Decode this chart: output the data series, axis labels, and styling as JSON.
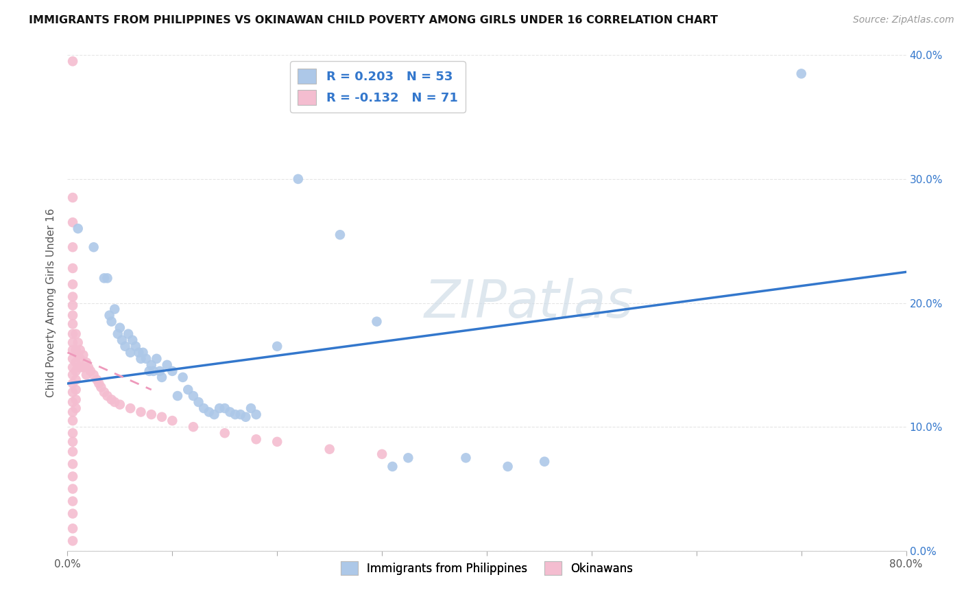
{
  "title": "IMMIGRANTS FROM PHILIPPINES VS OKINAWAN CHILD POVERTY AMONG GIRLS UNDER 16 CORRELATION CHART",
  "source": "Source: ZipAtlas.com",
  "ylabel": "Child Poverty Among Girls Under 16",
  "xlim": [
    0,
    0.8
  ],
  "ylim": [
    0,
    0.4
  ],
  "xticks": [
    0.0,
    0.1,
    0.2,
    0.3,
    0.4,
    0.5,
    0.6,
    0.7,
    0.8
  ],
  "xticklabels": [
    "0.0%",
    "",
    "",
    "",
    "",
    "",
    "",
    "",
    "80.0%"
  ],
  "yticks": [
    0.0,
    0.1,
    0.2,
    0.3,
    0.4
  ],
  "yticklabels_right": [
    "0.0%",
    "10.0%",
    "20.0%",
    "30.0%",
    "40.0%"
  ],
  "r_blue": 0.203,
  "n_blue": 53,
  "r_pink": -0.132,
  "n_pink": 71,
  "watermark": "ZIPatlas",
  "blue_color": "#adc8e8",
  "pink_color": "#f4bdd0",
  "trendline_blue_color": "#3377cc",
  "trendline_pink_color": "#ee99bb",
  "legend_text_color": "#3377cc",
  "blue_scatter": [
    [
      0.01,
      0.26
    ],
    [
      0.025,
      0.245
    ],
    [
      0.035,
      0.22
    ],
    [
      0.038,
      0.22
    ],
    [
      0.04,
      0.19
    ],
    [
      0.042,
      0.185
    ],
    [
      0.045,
      0.195
    ],
    [
      0.048,
      0.175
    ],
    [
      0.05,
      0.18
    ],
    [
      0.052,
      0.17
    ],
    [
      0.055,
      0.165
    ],
    [
      0.058,
      0.175
    ],
    [
      0.06,
      0.16
    ],
    [
      0.062,
      0.17
    ],
    [
      0.065,
      0.165
    ],
    [
      0.068,
      0.16
    ],
    [
      0.07,
      0.155
    ],
    [
      0.072,
      0.16
    ],
    [
      0.075,
      0.155
    ],
    [
      0.078,
      0.145
    ],
    [
      0.08,
      0.15
    ],
    [
      0.082,
      0.145
    ],
    [
      0.085,
      0.155
    ],
    [
      0.088,
      0.145
    ],
    [
      0.09,
      0.14
    ],
    [
      0.095,
      0.15
    ],
    [
      0.1,
      0.145
    ],
    [
      0.105,
      0.125
    ],
    [
      0.11,
      0.14
    ],
    [
      0.115,
      0.13
    ],
    [
      0.12,
      0.125
    ],
    [
      0.125,
      0.12
    ],
    [
      0.13,
      0.115
    ],
    [
      0.135,
      0.112
    ],
    [
      0.14,
      0.11
    ],
    [
      0.145,
      0.115
    ],
    [
      0.15,
      0.115
    ],
    [
      0.155,
      0.112
    ],
    [
      0.16,
      0.11
    ],
    [
      0.165,
      0.11
    ],
    [
      0.17,
      0.108
    ],
    [
      0.175,
      0.115
    ],
    [
      0.18,
      0.11
    ],
    [
      0.2,
      0.165
    ],
    [
      0.22,
      0.3
    ],
    [
      0.26,
      0.255
    ],
    [
      0.295,
      0.185
    ],
    [
      0.31,
      0.068
    ],
    [
      0.325,
      0.075
    ],
    [
      0.38,
      0.075
    ],
    [
      0.42,
      0.068
    ],
    [
      0.455,
      0.072
    ],
    [
      0.7,
      0.385
    ]
  ],
  "pink_scatter": [
    [
      0.005,
      0.395
    ],
    [
      0.005,
      0.285
    ],
    [
      0.005,
      0.265
    ],
    [
      0.005,
      0.245
    ],
    [
      0.005,
      0.228
    ],
    [
      0.005,
      0.215
    ],
    [
      0.005,
      0.205
    ],
    [
      0.005,
      0.198
    ],
    [
      0.005,
      0.19
    ],
    [
      0.005,
      0.183
    ],
    [
      0.005,
      0.175
    ],
    [
      0.005,
      0.168
    ],
    [
      0.005,
      0.162
    ],
    [
      0.005,
      0.155
    ],
    [
      0.005,
      0.148
    ],
    [
      0.005,
      0.142
    ],
    [
      0.005,
      0.135
    ],
    [
      0.005,
      0.128
    ],
    [
      0.005,
      0.12
    ],
    [
      0.005,
      0.112
    ],
    [
      0.005,
      0.105
    ],
    [
      0.005,
      0.095
    ],
    [
      0.005,
      0.088
    ],
    [
      0.005,
      0.08
    ],
    [
      0.005,
      0.07
    ],
    [
      0.005,
      0.06
    ],
    [
      0.005,
      0.05
    ],
    [
      0.005,
      0.04
    ],
    [
      0.005,
      0.03
    ],
    [
      0.005,
      0.018
    ],
    [
      0.005,
      0.008
    ],
    [
      0.008,
      0.175
    ],
    [
      0.008,
      0.162
    ],
    [
      0.008,
      0.152
    ],
    [
      0.008,
      0.145
    ],
    [
      0.008,
      0.138
    ],
    [
      0.008,
      0.13
    ],
    [
      0.008,
      0.122
    ],
    [
      0.008,
      0.115
    ],
    [
      0.01,
      0.168
    ],
    [
      0.01,
      0.158
    ],
    [
      0.01,
      0.148
    ],
    [
      0.012,
      0.162
    ],
    [
      0.012,
      0.155
    ],
    [
      0.012,
      0.148
    ],
    [
      0.015,
      0.158
    ],
    [
      0.015,
      0.148
    ],
    [
      0.018,
      0.152
    ],
    [
      0.018,
      0.142
    ],
    [
      0.02,
      0.148
    ],
    [
      0.022,
      0.145
    ],
    [
      0.025,
      0.142
    ],
    [
      0.028,
      0.138
    ],
    [
      0.03,
      0.135
    ],
    [
      0.032,
      0.132
    ],
    [
      0.035,
      0.128
    ],
    [
      0.038,
      0.125
    ],
    [
      0.042,
      0.122
    ],
    [
      0.045,
      0.12
    ],
    [
      0.05,
      0.118
    ],
    [
      0.06,
      0.115
    ],
    [
      0.07,
      0.112
    ],
    [
      0.08,
      0.11
    ],
    [
      0.09,
      0.108
    ],
    [
      0.1,
      0.105
    ],
    [
      0.12,
      0.1
    ],
    [
      0.15,
      0.095
    ],
    [
      0.18,
      0.09
    ],
    [
      0.2,
      0.088
    ],
    [
      0.25,
      0.082
    ],
    [
      0.3,
      0.078
    ]
  ],
  "blue_trend_x": [
    0.0,
    0.8
  ],
  "blue_trend_y": [
    0.135,
    0.225
  ],
  "pink_trend_x": [
    0.0,
    0.08
  ],
  "pink_trend_y": [
    0.16,
    0.13
  ]
}
